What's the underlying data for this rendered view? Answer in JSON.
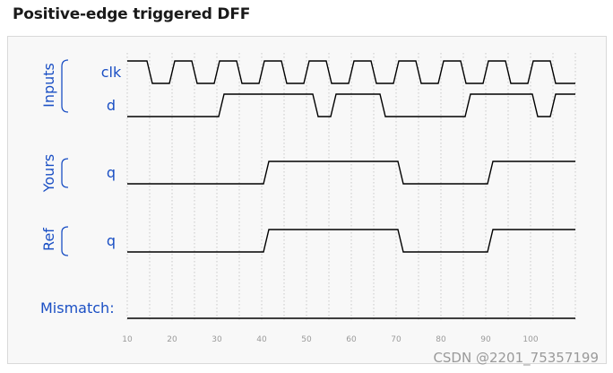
{
  "title": "Positive-edge triggered DFF",
  "groups": {
    "inputs": "Inputs",
    "yours": "Yours",
    "ref": "Ref"
  },
  "signals": {
    "clk": "clk",
    "d": "d",
    "q_yours": "q",
    "q_ref": "q",
    "mismatch": "Mismatch:"
  },
  "timeline": {
    "ticks": [
      "10",
      "20",
      "30",
      "40",
      "50",
      "60",
      "70",
      "80",
      "90",
      "100"
    ],
    "t_start": 10,
    "t_end": 110,
    "clk_period": 10,
    "clk_start_level": 1,
    "d_transitions": [
      [
        10,
        0
      ],
      [
        31,
        1
      ],
      [
        52,
        0
      ],
      [
        56,
        1
      ],
      [
        67,
        0
      ],
      [
        86,
        1
      ],
      [
        101,
        0
      ],
      [
        105,
        1
      ]
    ],
    "q_yours_transitions": [
      [
        10,
        0
      ],
      [
        41,
        1
      ],
      [
        71,
        0
      ],
      [
        91,
        1
      ]
    ],
    "q_ref_transitions": [
      [
        10,
        0
      ],
      [
        41,
        1
      ],
      [
        71,
        0
      ],
      [
        91,
        1
      ]
    ],
    "mismatch_transitions": [
      [
        10,
        0
      ]
    ]
  },
  "colors": {
    "label": "#1a4fc4",
    "wave": "#000000",
    "grid": "#c8c8c8",
    "tick": "#9a9a9a"
  },
  "watermark": "CSDN @2201_75357199"
}
